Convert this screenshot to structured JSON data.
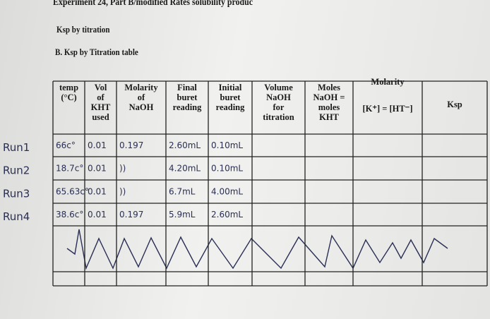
{
  "header": {
    "title": "Experiment 24, Part B/modified Rates solubility produc",
    "subtitle": "Ksp by titration",
    "section": "B. Ksp by Titration table"
  },
  "table": {
    "columns": [
      [
        "temp",
        "(°C)"
      ],
      [
        "Vol",
        "of",
        "KHT",
        "used"
      ],
      [
        "Molarity",
        "of",
        "NaOH"
      ],
      [
        "Final",
        "buret",
        "reading"
      ],
      [
        "Initial",
        "buret",
        "reading"
      ],
      [
        "Volume",
        "NaOH",
        "for",
        "titration"
      ],
      [
        "Moles",
        "NaOH =",
        "moles",
        "KHT"
      ],
      [
        "Molarity",
        "[K⁺] = [HT⁻]"
      ],
      [
        "Ksp"
      ]
    ],
    "rows": [
      {
        "label": "Run1",
        "cells": [
          "66c°",
          "0.01",
          "0.197",
          "2.60mL",
          "0.10mL"
        ]
      },
      {
        "label": "Run2",
        "cells": [
          "18.7c°",
          "0.01",
          "))",
          "4.20mL",
          "0.10mL"
        ]
      },
      {
        "label": "Run3",
        "cells": [
          "65.63c°",
          "0.01",
          "))",
          "6.7mL",
          "4.00mL"
        ]
      },
      {
        "label": "Run4",
        "cells": [
          "38.6c°",
          "0.01",
          "0.197",
          "5.9mL",
          "2.60mL"
        ]
      }
    ]
  }
}
